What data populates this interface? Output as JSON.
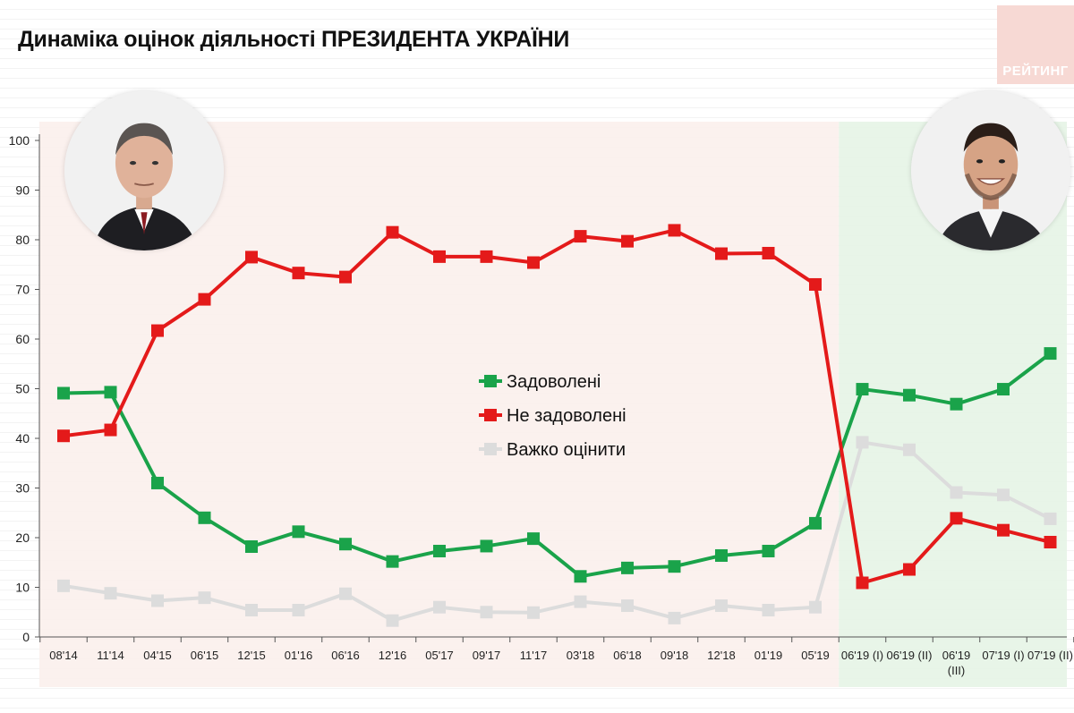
{
  "title": "Динаміка оцінок діяльності ПРЕЗИДЕНТА УКРАЇНИ",
  "brand": "РЕЙТИНГ",
  "chart_data": {
    "type": "line",
    "categories": [
      "08'14",
      "11'14",
      "04'15",
      "06'15",
      "12'15",
      "01'16",
      "06'16",
      "12'16",
      "05'17",
      "09'17",
      "11'17",
      "03'18",
      "06'18",
      "09'18",
      "12'18",
      "01'19",
      "05'19",
      "06'19 (I)",
      "06'19 (II)",
      "06'19 (III)",
      "07'19 (I)",
      "07'19 (II)"
    ],
    "series": [
      {
        "name": "Задоволені",
        "color": "#1aa34a",
        "values": [
          49.1,
          49.3,
          31.0,
          24.0,
          18.2,
          21.2,
          18.7,
          15.2,
          17.3,
          18.3,
          19.8,
          12.2,
          13.9,
          14.2,
          16.4,
          17.3,
          22.9,
          49.9,
          48.7,
          46.9,
          49.9,
          57.1
        ]
      },
      {
        "name": "Не задоволені",
        "color": "#e41a1a",
        "values": [
          40.5,
          41.7,
          61.7,
          68.0,
          76.5,
          73.3,
          72.5,
          81.5,
          76.6,
          76.6,
          75.4,
          80.7,
          79.7,
          81.9,
          77.2,
          77.3,
          71.0,
          10.9,
          13.6,
          23.9,
          21.5,
          19.1
        ]
      },
      {
        "name": "Важко оцінити",
        "color": "#dcdcdc",
        "values": [
          10.3,
          8.8,
          7.3,
          7.9,
          5.4,
          5.4,
          8.7,
          3.3,
          6.0,
          5.0,
          4.9,
          7.1,
          6.3,
          3.8,
          6.3,
          5.4,
          6.0,
          39.2,
          37.7,
          29.1,
          28.6,
          23.8
        ]
      }
    ],
    "y_ticks": [
      0,
      10,
      20,
      30,
      40,
      50,
      60,
      70,
      80,
      90,
      100
    ],
    "ylim": [
      0,
      100
    ],
    "legend_position": "center",
    "background_bands": [
      {
        "from_index": 0,
        "to_index": 16,
        "color": "#fbf0ec"
      },
      {
        "from_index": 17,
        "to_index": 21,
        "color": "#e6f4e6"
      }
    ]
  }
}
